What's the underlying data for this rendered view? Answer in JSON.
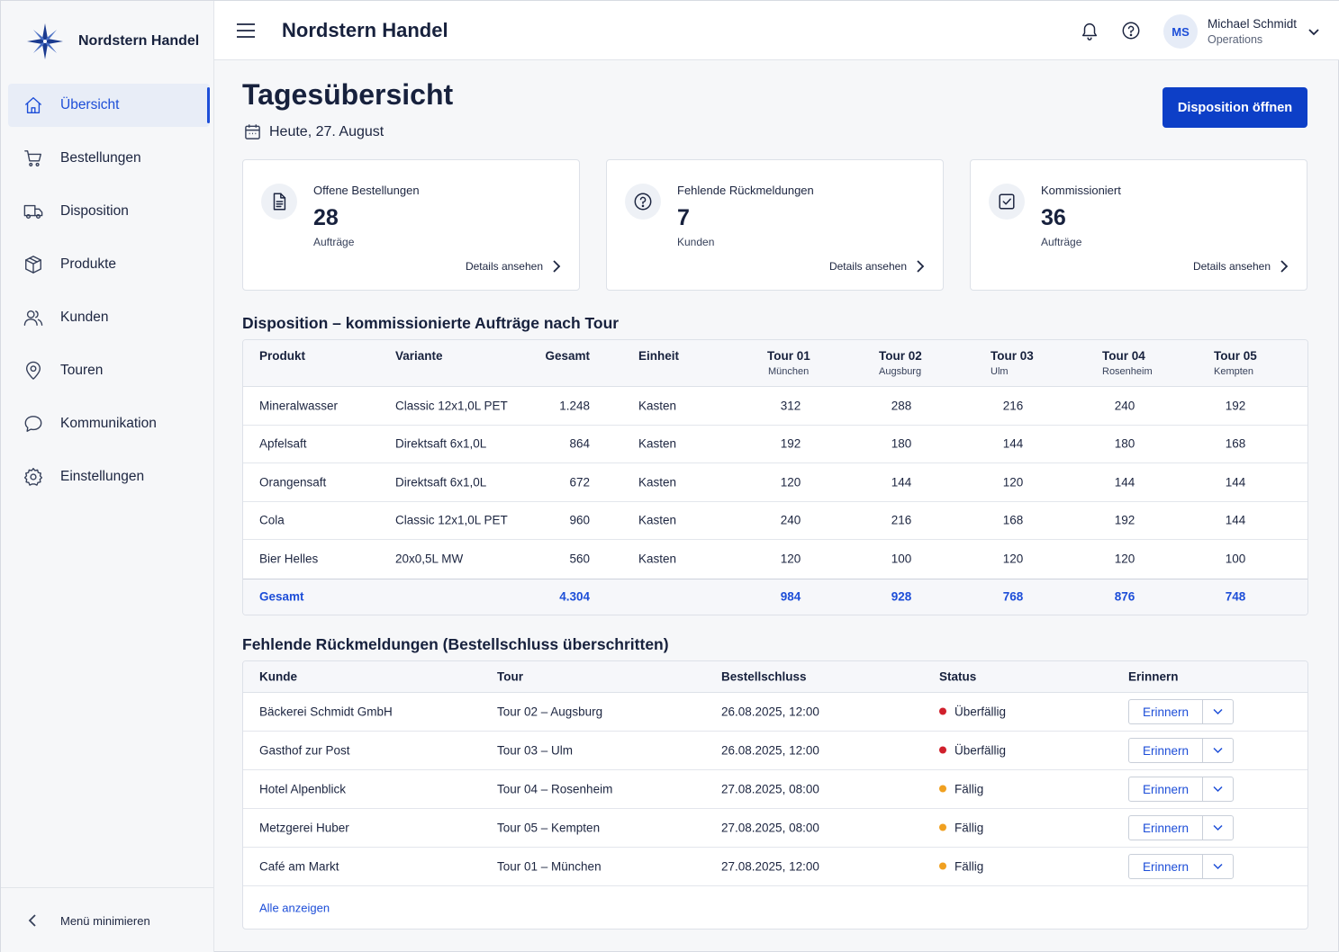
{
  "brand": {
    "name": "Nordstern Handel"
  },
  "sidebar": {
    "items": [
      {
        "label": "Übersicht",
        "icon": "home-icon",
        "active": true
      },
      {
        "label": "Bestellungen",
        "icon": "cart-icon"
      },
      {
        "label": "Disposition",
        "icon": "truck-icon"
      },
      {
        "label": "Produkte",
        "icon": "box-icon"
      },
      {
        "label": "Kunden",
        "icon": "users-icon"
      },
      {
        "label": "Touren",
        "icon": "map-pin-icon"
      },
      {
        "label": "Kommunikation",
        "icon": "chat-icon"
      },
      {
        "label": "Einstellungen",
        "icon": "gear-icon"
      }
    ],
    "collapse_label": "Menü minimieren"
  },
  "header": {
    "title": "Nordstern Handel",
    "user": {
      "initials": "MS",
      "name": "Michael Schmidt",
      "role": "Operations"
    }
  },
  "page": {
    "title": "Tagesübersicht",
    "date": "Heute, 27. August",
    "primary_button": "Disposition öffnen"
  },
  "cards": [
    {
      "label": "Offene Bestellungen",
      "value": "28",
      "unit": "Aufträge",
      "link": "Details ansehen",
      "icon": "document-icon"
    },
    {
      "label": "Fehlende Rückmeldungen",
      "value": "7",
      "unit": "Kunden",
      "link": "Details ansehen",
      "icon": "question-icon"
    },
    {
      "label": "Kommissioniert",
      "value": "36",
      "unit": "Aufträge",
      "link": "Details ansehen",
      "icon": "checkbox-icon"
    }
  ],
  "disposition": {
    "title": "Disposition – kommissionierte Aufträge nach Tour",
    "columns": {
      "produkt": "Produkt",
      "variante": "Variante",
      "gesamt": "Gesamt",
      "einheit": "Einheit"
    },
    "tours": [
      {
        "name": "Tour 01",
        "city": "München"
      },
      {
        "name": "Tour 02",
        "city": "Augsburg"
      },
      {
        "name": "Tour 03",
        "city": "Ulm"
      },
      {
        "name": "Tour 04",
        "city": "Rosenheim"
      },
      {
        "name": "Tour 05",
        "city": "Kempten"
      }
    ],
    "rows": [
      {
        "produkt": "Mineralwasser",
        "variante": "Classic 12x1,0L PET",
        "gesamt": "1.248",
        "einheit": "Kasten",
        "t": [
          "312",
          "288",
          "216",
          "240",
          "192"
        ]
      },
      {
        "produkt": "Apfelsaft",
        "variante": "Direktsaft 6x1,0L",
        "gesamt": "864",
        "einheit": "Kasten",
        "t": [
          "192",
          "180",
          "144",
          "180",
          "168"
        ]
      },
      {
        "produkt": "Orangensaft",
        "variante": "Direktsaft 6x1,0L",
        "gesamt": "672",
        "einheit": "Kasten",
        "t": [
          "120",
          "144",
          "120",
          "144",
          "144"
        ]
      },
      {
        "produkt": "Cola",
        "variante": "Classic 12x1,0L PET",
        "gesamt": "960",
        "einheit": "Kasten",
        "t": [
          "240",
          "216",
          "168",
          "192",
          "144"
        ]
      },
      {
        "produkt": "Bier Helles",
        "variante": "20x0,5L MW",
        "gesamt": "560",
        "einheit": "Kasten",
        "t": [
          "120",
          "100",
          "120",
          "120",
          "100"
        ]
      }
    ],
    "total": {
      "label": "Gesamt",
      "gesamt": "4.304",
      "t": [
        "984",
        "928",
        "768",
        "876",
        "748"
      ]
    }
  },
  "missing": {
    "title": "Fehlende Rückmeldungen (Bestellschluss überschritten)",
    "columns": {
      "kunde": "Kunde",
      "tour": "Tour",
      "bestellschluss": "Bestellschluss",
      "status": "Status",
      "erinnern": "Erinnern"
    },
    "rows": [
      {
        "kunde": "Bäckerei Schmidt GmbH",
        "tour": "Tour 02 – Augsburg",
        "bestellschluss": "26.08.2025, 12:00",
        "status": "Überfällig",
        "status_color": "#d0202c",
        "button": "Erinnern"
      },
      {
        "kunde": "Gasthof zur Post",
        "tour": "Tour 03 – Ulm",
        "bestellschluss": "26.08.2025, 12:00",
        "status": "Überfällig",
        "status_color": "#d0202c",
        "button": "Erinnern"
      },
      {
        "kunde": "Hotel Alpenblick",
        "tour": "Tour 04 – Rosenheim",
        "bestellschluss": "27.08.2025, 08:00",
        "status": "Fällig",
        "status_color": "#f0a020",
        "button": "Erinnern"
      },
      {
        "kunde": "Metzgerei Huber",
        "tour": "Tour 05 – Kempten",
        "bestellschluss": "27.08.2025, 08:00",
        "status": "Fällig",
        "status_color": "#f0a020",
        "button": "Erinnern"
      },
      {
        "kunde": "Café am Markt",
        "tour": "Tour 01 – München",
        "bestellschluss": "27.08.2025, 12:00",
        "status": "Fällig",
        "status_color": "#f0a020",
        "button": "Erinnern"
      }
    ],
    "show_all": "Alle anzeigen"
  },
  "colors": {
    "accent": "#0d3fc7",
    "link": "#1d4ed8",
    "overdue": "#d0202c",
    "due": "#f0a020"
  }
}
